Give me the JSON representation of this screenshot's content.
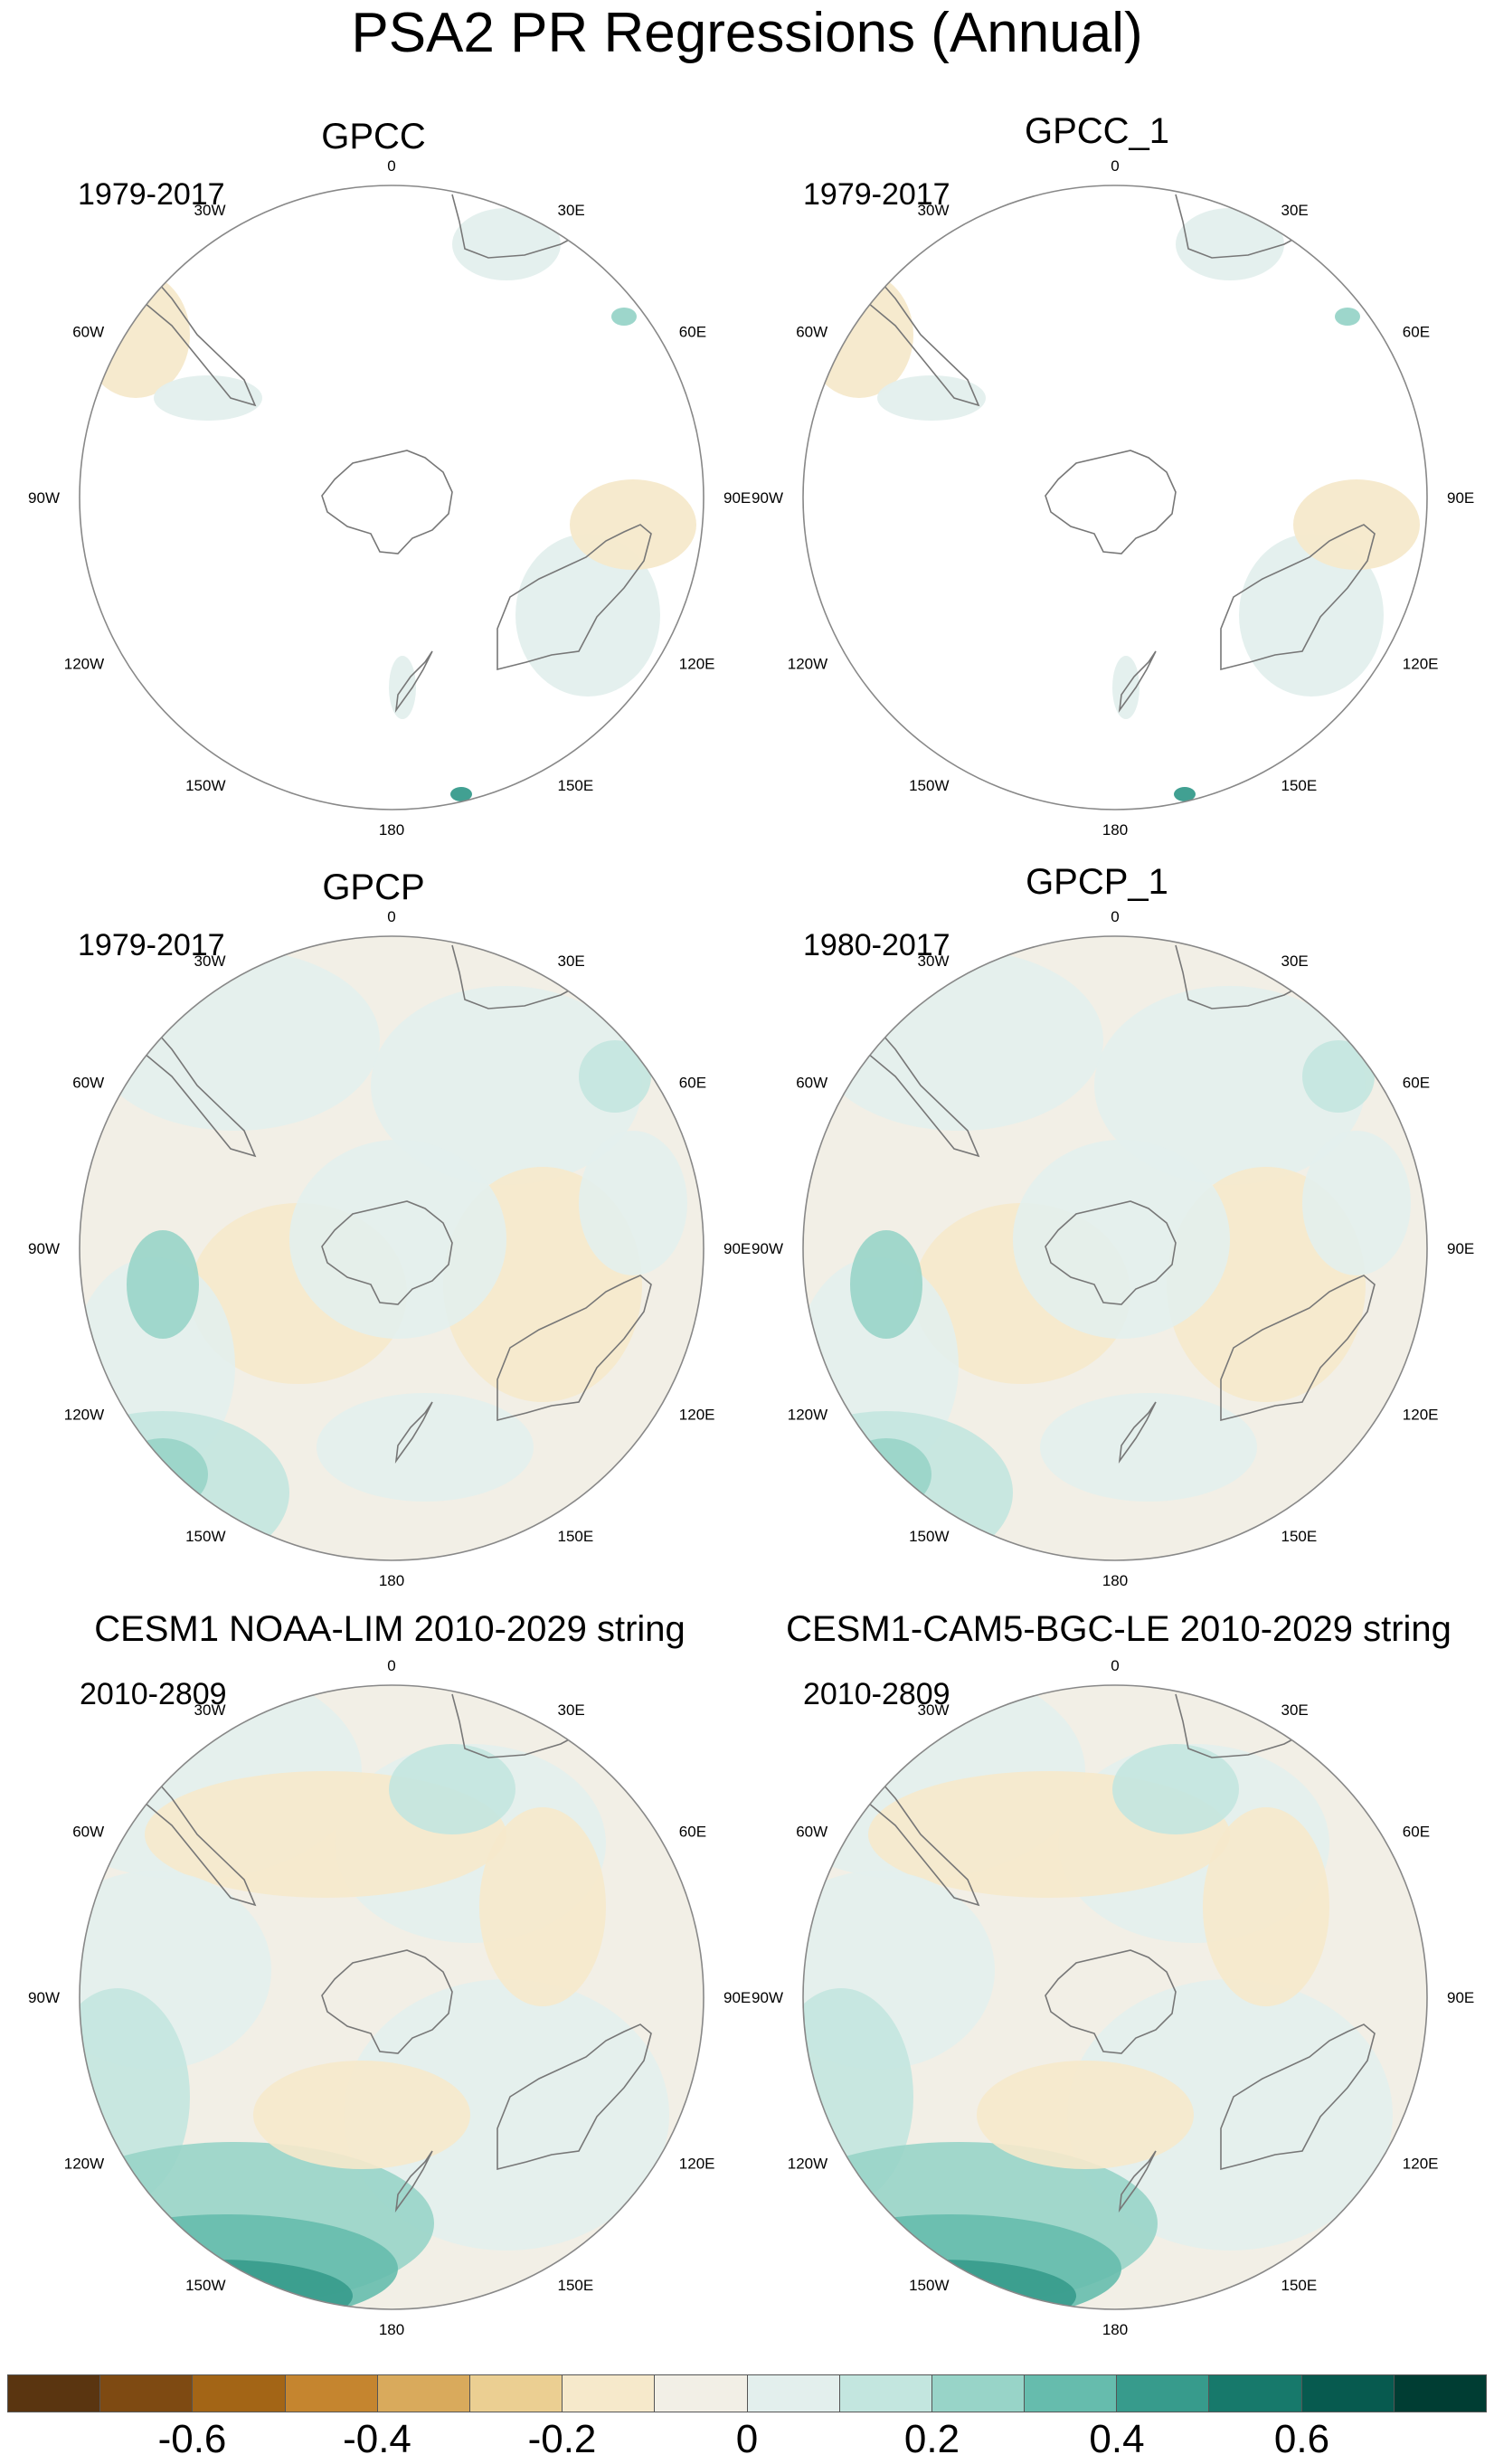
{
  "figure": {
    "title": "PSA2 PR Regressions (Annual)"
  },
  "panels": [
    {
      "title": "GPCC",
      "period": "1979-2017",
      "coverage": "land"
    },
    {
      "title": "GPCC_1",
      "period": "1979-2017",
      "coverage": "land"
    },
    {
      "title": "GPCP",
      "period": "1979-2017",
      "coverage": "full"
    },
    {
      "title": "GPCP_1",
      "period": "1980-2017",
      "coverage": "full"
    },
    {
      "title": "CESM1 NOAA-LIM 2010-2029 string",
      "period": "2010-2809",
      "coverage": "full"
    },
    {
      "title": "CESM1-CAM5-BGC-LE 2010-2029 string",
      "period": "2010-2809",
      "coverage": "full"
    }
  ],
  "map_labels": [
    "0",
    "30E",
    "60E",
    "90E",
    "120E",
    "150E",
    "180",
    "150W",
    "120W",
    "90W",
    "60W",
    "30W"
  ],
  "colorbar": {
    "colors": [
      "#5a3510",
      "#7e4a12",
      "#a36516",
      "#c5852f",
      "#d9aa5c",
      "#ebcf92",
      "#f6e9cb",
      "#f2efe6",
      "#e3efed",
      "#c3e6df",
      "#98d4c8",
      "#66bcad",
      "#379b8c",
      "#17796b",
      "#075a4f",
      "#003d33"
    ],
    "tick_labels": [
      "-0.6",
      "-0.4",
      "-0.2",
      "0",
      "0.2",
      "0.4",
      "0.6"
    ],
    "tick_values": [
      -0.6,
      -0.4,
      -0.2,
      0,
      0.2,
      0.4,
      0.6
    ],
    "range": [
      -0.8,
      0.8
    ]
  }
}
